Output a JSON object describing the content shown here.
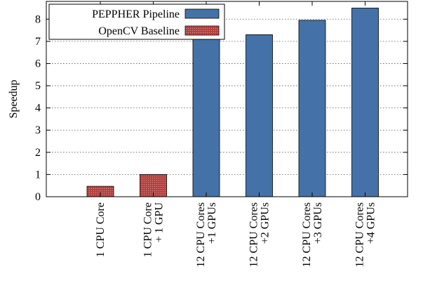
{
  "chart_data": {
    "type": "bar",
    "title": "",
    "xlabel": "",
    "ylabel": "Speedup",
    "ylim": [
      0,
      8.8
    ],
    "yticks": [
      0,
      1,
      2,
      3,
      4,
      5,
      6,
      7,
      8
    ],
    "grid": true,
    "legend_position": "top-left",
    "categories": [
      [
        "1 CPU Core"
      ],
      [
        "1 CPU Core",
        "+ 1 GPU"
      ],
      [
        "12 CPU Cores",
        "+1 GPUs"
      ],
      [
        "12 CPU Cores",
        "+2 GPUs"
      ],
      [
        "12 CPU Cores",
        "+3 GPUs"
      ],
      [
        "12 CPU Cores",
        "+4 GPUs"
      ]
    ],
    "series": [
      {
        "name": "PEPPHER Pipeline",
        "color": "#4472a8",
        "values": [
          null,
          null,
          7.2,
          7.3,
          7.95,
          8.5
        ]
      },
      {
        "name": "OpenCV Baseline",
        "color": "#b5413f",
        "pattern": "dotted",
        "values": [
          0.47,
          1.0,
          null,
          null,
          null,
          null
        ]
      }
    ]
  }
}
